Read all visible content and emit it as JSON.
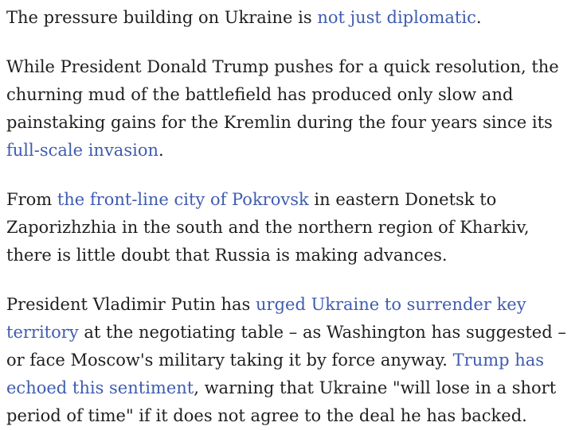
{
  "page": {
    "background_color": "#ffffff",
    "text_color": "#1f1f1f",
    "link_color": "#3f5cb0"
  },
  "article": {
    "paragraphs": [
      {
        "segments": [
          {
            "text": "The pressure building on Ukraine is ",
            "link": false
          },
          {
            "text": "not just diplomatic",
            "link": true
          },
          {
            "text": ".",
            "link": false
          }
        ]
      },
      {
        "segments": [
          {
            "text": "While President Donald Trump pushes for a quick resolution, the churning mud of the battlefield has produced only slow and painstaking gains for the Kremlin during the four years since its ",
            "link": false
          },
          {
            "text": "full-scale invasion",
            "link": true
          },
          {
            "text": ".",
            "link": false
          }
        ]
      },
      {
        "segments": [
          {
            "text": "From ",
            "link": false
          },
          {
            "text": "the front-line city of Pokrovsk",
            "link": true
          },
          {
            "text": " in eastern Donetsk to Zaporizhzhia in the south and the northern region of Kharkiv, there is little doubt that Russia is making advances.",
            "link": false
          }
        ]
      },
      {
        "segments": [
          {
            "text": "President Vladimir Putin has ",
            "link": false
          },
          {
            "text": "urged Ukraine to surrender key territory",
            "link": true
          },
          {
            "text": " at the negotiating table – as Washington has suggested – or face Moscow's military taking it by force anyway. ",
            "link": false
          },
          {
            "text": "Trump has echoed this sentiment",
            "link": true
          },
          {
            "text": ", warning that Ukraine \"will lose in a short period of time\" if it does not agree to the deal he has backed.",
            "link": false
          }
        ]
      }
    ]
  }
}
